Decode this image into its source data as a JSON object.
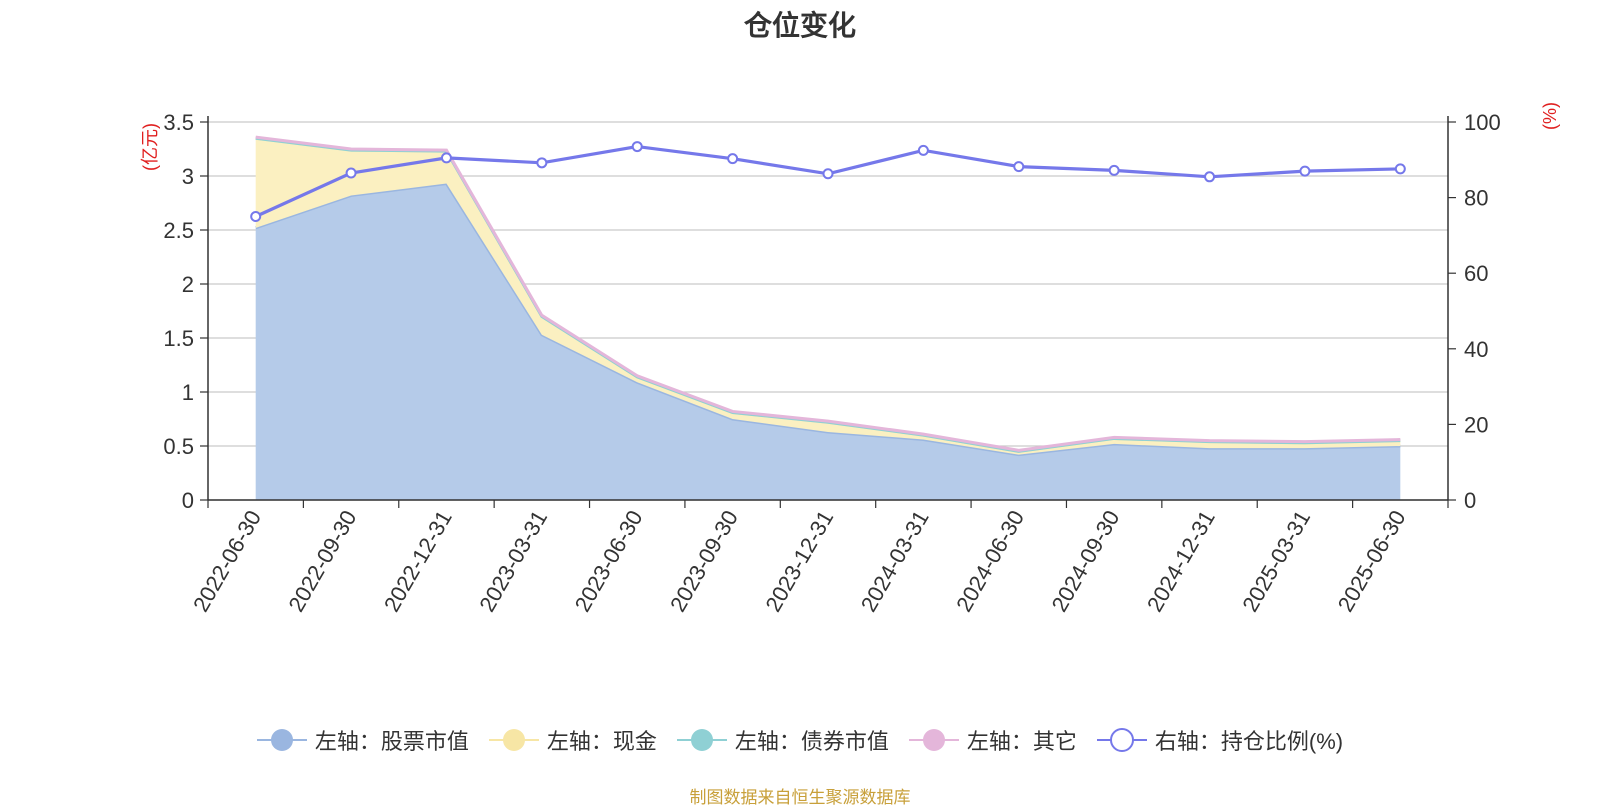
{
  "chart_data": {
    "type": "area",
    "title": "仓位变化",
    "categories": [
      "2022-06-30",
      "2022-09-30",
      "2022-12-31",
      "2023-03-31",
      "2023-06-30",
      "2023-09-30",
      "2023-12-31",
      "2024-03-31",
      "2024-06-30",
      "2024-09-30",
      "2024-12-31",
      "2025-03-31",
      "2025-06-30"
    ],
    "left_axis": {
      "unit": "(亿元)",
      "ylim": [
        0,
        3.5
      ],
      "ticks": [
        "0",
        "0.5",
        "1",
        "1.5",
        "2",
        "2.5",
        "3",
        "3.5"
      ]
    },
    "right_axis": {
      "unit": "(%)",
      "ylim": [
        0,
        100
      ],
      "ticks": [
        "0",
        "20",
        "40",
        "60",
        "80",
        "100"
      ]
    },
    "series": [
      {
        "name": "左轴：股票市值",
        "axis": "left",
        "stack": true,
        "color": "#9ab6e0",
        "fill": "#b5cbe9",
        "values": [
          2.52,
          2.82,
          2.93,
          1.53,
          1.09,
          0.75,
          0.63,
          0.56,
          0.42,
          0.52,
          0.48,
          0.48,
          0.5
        ]
      },
      {
        "name": "左轴：现金",
        "axis": "left",
        "stack": true,
        "color": "#f7e6a5",
        "fill": "#fbf0c1",
        "values": [
          0.83,
          0.42,
          0.3,
          0.17,
          0.05,
          0.06,
          0.09,
          0.04,
          0.03,
          0.05,
          0.06,
          0.05,
          0.05
        ]
      },
      {
        "name": "左轴：债券市值",
        "axis": "left",
        "stack": true,
        "color": "#8fd0d4",
        "fill": "#c7e8ea",
        "values": [
          0,
          0,
          0,
          0,
          0,
          0,
          0,
          0,
          0,
          0,
          0,
          0,
          0
        ]
      },
      {
        "name": "左轴：其它",
        "axis": "left",
        "stack": true,
        "color": "#e4b6da",
        "fill": "#f0d6ec",
        "values": [
          0.01,
          0.01,
          0.01,
          0.01,
          0.01,
          0.01,
          0.01,
          0.01,
          0.01,
          0.01,
          0.01,
          0.01,
          0.01
        ]
      },
      {
        "name": "右轴：持仓比例(%)",
        "axis": "right",
        "stack": false,
        "color": "#7578ea",
        "values": [
          75,
          86.5,
          90.5,
          89.2,
          93.5,
          90.3,
          86.3,
          92.5,
          88.2,
          87.2,
          85.5,
          87.0,
          87.6
        ]
      }
    ],
    "grid": true,
    "legend_position": "bottom"
  },
  "source_note": "制图数据来自恒生聚源数据库"
}
